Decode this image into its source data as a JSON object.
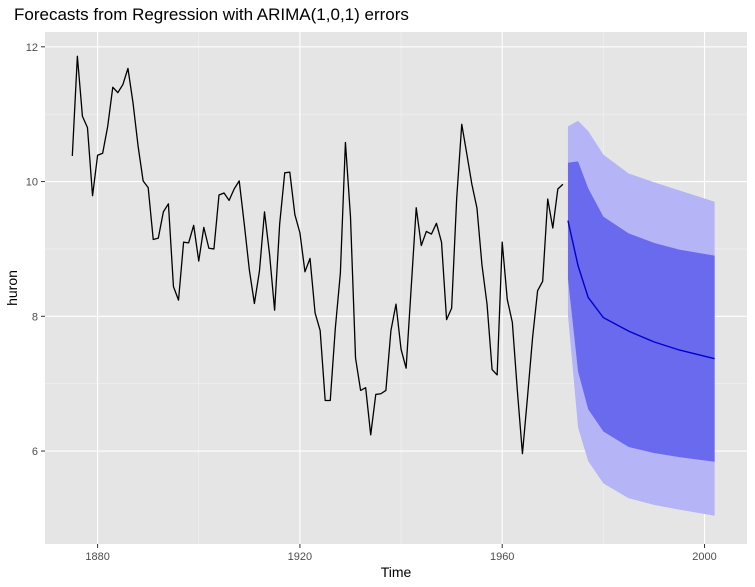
{
  "chart_data": {
    "type": "line",
    "title": "Forecasts from Regression with ARIMA(1,0,1) errors",
    "xlabel": "Time",
    "ylabel": "huron",
    "xlim": [
      1869.6,
      2008.4
    ],
    "ylim": [
      4.62,
      12.22
    ],
    "x_ticks": [
      1880,
      1920,
      1960,
      2000
    ],
    "y_ticks": [
      6,
      8,
      10,
      12
    ],
    "grid": true,
    "legend": "none",
    "colors": {
      "panel_background": "#e5e5e5",
      "grid_major": "#ffffff",
      "grid_minor": "#f2f2f2",
      "observed_line": "#000000",
      "forecast_line": "#0000cc",
      "interval_95": "#b4b4f6",
      "interval_80": "#6a6aee"
    },
    "observed": {
      "x_start": 1875,
      "values": [
        10.38,
        11.86,
        10.97,
        10.8,
        9.79,
        10.39,
        10.42,
        10.82,
        11.4,
        11.32,
        11.44,
        11.68,
        11.17,
        10.53,
        10.01,
        9.91,
        9.14,
        9.16,
        9.55,
        9.67,
        8.44,
        8.24,
        9.1,
        9.09,
        9.35,
        8.82,
        9.32,
        9.01,
        9.0,
        9.8,
        9.83,
        9.72,
        9.89,
        10.01,
        9.37,
        8.69,
        8.19,
        8.67,
        9.55,
        8.92,
        8.09,
        9.37,
        10.13,
        10.14,
        9.51,
        9.24,
        8.66,
        8.86,
        8.05,
        7.79,
        6.75,
        6.75,
        7.82,
        8.64,
        10.58,
        9.48,
        7.38,
        6.9,
        6.94,
        6.24,
        6.84,
        6.85,
        6.9,
        7.79,
        8.18,
        7.51,
        7.23,
        8.42,
        9.61,
        9.05,
        9.26,
        9.22,
        9.38,
        9.1,
        7.95,
        8.12,
        9.75,
        10.85,
        10.41,
        9.96,
        9.61,
        8.76,
        8.18,
        7.21,
        7.13,
        9.1,
        8.25,
        7.91,
        6.89,
        5.96,
        6.8,
        7.68,
        8.38,
        8.52,
        9.74,
        9.31,
        9.89,
        9.96
      ]
    },
    "forecast": {
      "x": [
        1973,
        1975,
        1977,
        1980,
        1985,
        1990,
        1995,
        2002
      ],
      "mean": [
        9.42,
        8.75,
        8.28,
        7.98,
        7.78,
        7.62,
        7.5,
        7.37
      ],
      "lo80": [
        8.56,
        7.18,
        6.62,
        6.29,
        6.06,
        5.97,
        5.91,
        5.84
      ],
      "hi80": [
        10.28,
        10.3,
        9.9,
        9.48,
        9.23,
        9.09,
        8.99,
        8.9
      ],
      "lo95": [
        8.02,
        6.35,
        5.85,
        5.52,
        5.3,
        5.2,
        5.13,
        5.04
      ],
      "hi95": [
        10.82,
        10.9,
        10.75,
        10.4,
        10.12,
        9.99,
        9.87,
        9.7
      ]
    }
  }
}
